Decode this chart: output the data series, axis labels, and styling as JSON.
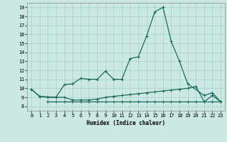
{
  "xlabel": "Humidex (Indice chaleur)",
  "ylabel": "",
  "bg_color": "#cce8e4",
  "grid_color": "#aad4cf",
  "line_color": "#1a6b5a",
  "xlim": [
    -0.5,
    23.5
  ],
  "ylim": [
    7.5,
    19.5
  ],
  "xticks": [
    0,
    1,
    2,
    3,
    4,
    5,
    6,
    7,
    8,
    9,
    10,
    11,
    12,
    13,
    14,
    15,
    16,
    17,
    18,
    19,
    20,
    21,
    22,
    23
  ],
  "yticks": [
    8,
    9,
    10,
    11,
    12,
    13,
    14,
    15,
    16,
    17,
    18,
    19
  ],
  "line1_x": [
    0,
    1,
    2,
    3,
    4,
    5,
    6,
    7,
    8,
    9,
    10,
    11,
    12,
    13,
    14,
    15,
    16,
    17,
    18,
    19,
    21,
    22,
    23
  ],
  "line1_y": [
    9.9,
    9.1,
    9.0,
    9.0,
    10.4,
    10.5,
    11.1,
    11.0,
    11.0,
    11.9,
    11.0,
    11.0,
    13.3,
    13.5,
    15.8,
    18.5,
    19.0,
    15.2,
    13.0,
    10.5,
    9.2,
    9.5,
    8.5
  ],
  "line2_x": [
    0,
    1,
    3,
    4,
    5,
    6,
    7,
    8,
    9,
    10,
    11,
    12,
    13,
    14,
    15,
    16,
    17,
    18,
    19,
    20,
    21,
    22,
    23
  ],
  "line2_y": [
    9.9,
    9.1,
    9.0,
    9.0,
    8.7,
    8.7,
    8.7,
    8.8,
    9.0,
    9.1,
    9.2,
    9.3,
    9.4,
    9.5,
    9.6,
    9.7,
    9.8,
    9.9,
    10.0,
    10.2,
    8.5,
    9.2,
    8.5
  ],
  "line3_x": [
    2,
    3,
    4,
    5,
    6,
    7,
    8,
    9,
    10,
    11,
    12,
    13,
    14,
    15,
    16,
    17,
    18,
    19,
    20,
    21,
    22,
    23
  ],
  "line3_y": [
    8.5,
    8.5,
    8.5,
    8.5,
    8.5,
    8.5,
    8.5,
    8.5,
    8.5,
    8.5,
    8.5,
    8.5,
    8.5,
    8.5,
    8.5,
    8.5,
    8.5,
    8.5,
    8.5,
    8.5,
    8.5,
    8.5
  ]
}
